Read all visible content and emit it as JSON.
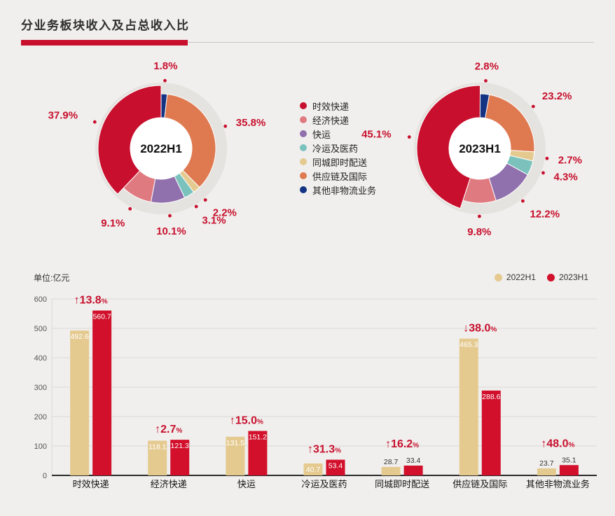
{
  "page": {
    "title": "分业务板块收入及占总收入比"
  },
  "colors": {
    "background": "#f0efed",
    "accent_red": "#c8102e",
    "donut_ring": "#e4e3df",
    "grid_line": "#dbdad7",
    "axis_line": "#2b2b2b",
    "bar_2022": "#e5ca90",
    "bar_2023": "#d2102c"
  },
  "legend": {
    "items": [
      {
        "label": "时效快递",
        "color": "#c8102e"
      },
      {
        "label": "经济快递",
        "color": "#df7a80"
      },
      {
        "label": "快运",
        "color": "#9070ad"
      },
      {
        "label": "冷运及医药",
        "color": "#7bc2bd"
      },
      {
        "label": "同城即时配送",
        "color": "#e5ca90"
      },
      {
        "label": "供应链及国际",
        "color": "#df7950"
      },
      {
        "label": "其他非物流业务",
        "color": "#143383"
      }
    ]
  },
  "chart_data": [
    {
      "type": "pie",
      "style": "donut",
      "title": "2022H1",
      "labels": [
        "时效快递",
        "经济快递",
        "快运",
        "冷运及医药",
        "同城即时配送",
        "供应链及国际",
        "其他非物流业务"
      ],
      "values": [
        37.9,
        9.1,
        10.1,
        3.1,
        2.2,
        35.8,
        1.8
      ],
      "value_unit": "%"
    },
    {
      "type": "pie",
      "style": "donut",
      "title": "2023H1",
      "labels": [
        "时效快递",
        "经济快递",
        "快运",
        "冷运及医药",
        "同城即时配送",
        "供应链及国际",
        "其他非物流业务"
      ],
      "values": [
        45.1,
        9.8,
        12.2,
        4.3,
        2.7,
        23.2,
        2.8
      ],
      "value_unit": "%"
    },
    {
      "type": "bar",
      "unit_label": "单位:亿元",
      "categories": [
        "时效快递",
        "经济快递",
        "快运",
        "冷运及医药",
        "同城即时配送",
        "供应链及国际",
        "其他非物流业务"
      ],
      "series": [
        {
          "name": "2022H1",
          "color": "#e5ca90",
          "values": [
            492.6,
            118.1,
            131.5,
            40.7,
            28.7,
            465.3,
            23.7
          ]
        },
        {
          "name": "2023H1",
          "color": "#d2102c",
          "values": [
            560.7,
            121.3,
            151.2,
            53.4,
            33.4,
            288.6,
            35.1
          ]
        }
      ],
      "growth_labels": [
        {
          "direction": "up",
          "value": "13.8",
          "unit": "%"
        },
        {
          "direction": "up",
          "value": "2.7",
          "unit": "%"
        },
        {
          "direction": "up",
          "value": "15.0",
          "unit": "%"
        },
        {
          "direction": "up",
          "value": "31.3",
          "unit": "%"
        },
        {
          "direction": "up",
          "value": "16.2",
          "unit": "%"
        },
        {
          "direction": "down",
          "value": "38.0",
          "unit": "%"
        },
        {
          "direction": "up",
          "value": "48.0",
          "unit": "%"
        }
      ],
      "ylim": [
        0,
        600
      ],
      "yticks": [
        0,
        100,
        200,
        300,
        400,
        500,
        600
      ],
      "grid": true,
      "legend_position": "top-right"
    }
  ]
}
